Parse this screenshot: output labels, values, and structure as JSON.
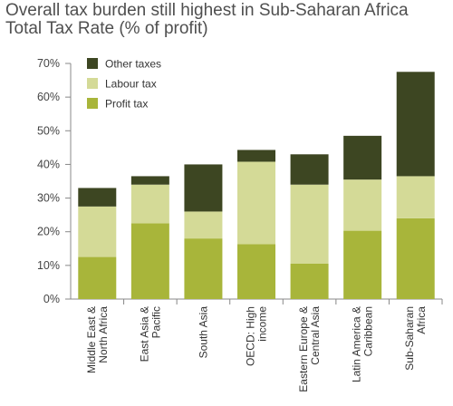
{
  "chart_data": {
    "type": "bar",
    "stacked": true,
    "title": "Overall tax burden still highest in Sub-Saharan Africa",
    "subtitle": "Total Tax Rate (% of profit)",
    "categories": [
      [
        "Middle East &",
        "North Africa"
      ],
      [
        "East Asia &",
        "Pacific"
      ],
      [
        "South Asia"
      ],
      [
        "OECD: High",
        "income"
      ],
      [
        "Eastern Europe &",
        "Central Asia"
      ],
      [
        "Latin America &",
        "Caribbean"
      ],
      [
        "Sub-Saharan",
        "Africa"
      ]
    ],
    "series": [
      {
        "name": "Profit tax",
        "color": "#a8b53a",
        "values": [
          12.5,
          22.5,
          18,
          16.3,
          10.5,
          20.3,
          24
        ]
      },
      {
        "name": "Labour tax",
        "color": "#d4da97",
        "values": [
          15,
          11.5,
          8,
          24.5,
          23.5,
          15.2,
          12.5
        ]
      },
      {
        "name": "Other taxes",
        "color": "#3d4622",
        "values": [
          5.5,
          2.5,
          14,
          3.5,
          9,
          13,
          31
        ]
      }
    ],
    "legend_order": [
      "Other taxes",
      "Labour tax",
      "Profit tax"
    ],
    "legend_position": "top-left",
    "ylim": [
      0,
      70
    ],
    "yticks": [
      0,
      10,
      20,
      30,
      40,
      50,
      60,
      70
    ],
    "ytick_labels": [
      "0%",
      "10%",
      "20%",
      "30%",
      "40%",
      "50%",
      "60%",
      "70%"
    ],
    "grid": false
  }
}
